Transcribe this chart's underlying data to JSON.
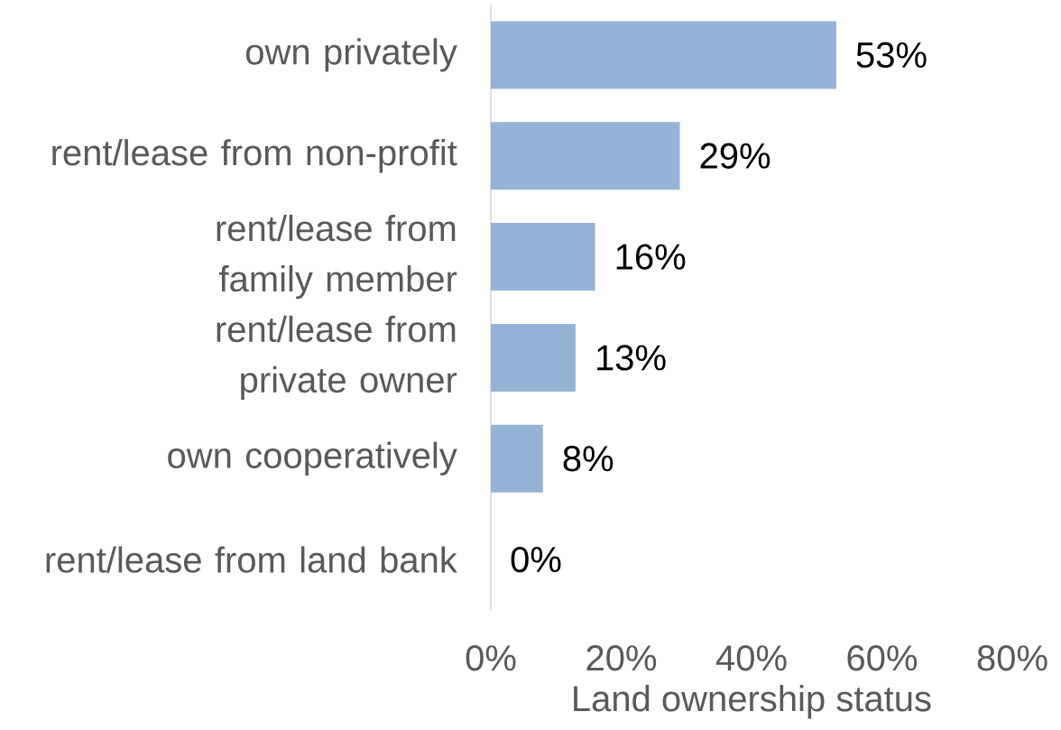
{
  "chart_data": {
    "type": "bar",
    "orientation": "horizontal",
    "xlabel": "Land ownership status",
    "categories": [
      "own privately",
      "rent/lease from non-profit",
      "rent/lease from family member",
      "rent/lease from private owner",
      "own cooperatively",
      "rent/lease from land bank"
    ],
    "values": [
      53,
      29,
      16,
      13,
      8,
      0
    ],
    "value_labels": [
      "53%",
      "29%",
      "16%",
      "13%",
      "8%",
      "0%"
    ],
    "color": "#95b3d7",
    "xlim": [
      0,
      80
    ],
    "xticks": [
      {
        "value": 0,
        "label": "0%"
      },
      {
        "value": 20,
        "label": "20%"
      },
      {
        "value": 40,
        "label": "40%"
      },
      {
        "value": 60,
        "label": "60%"
      },
      {
        "value": 80,
        "label": "80%"
      }
    ],
    "grid": false
  }
}
